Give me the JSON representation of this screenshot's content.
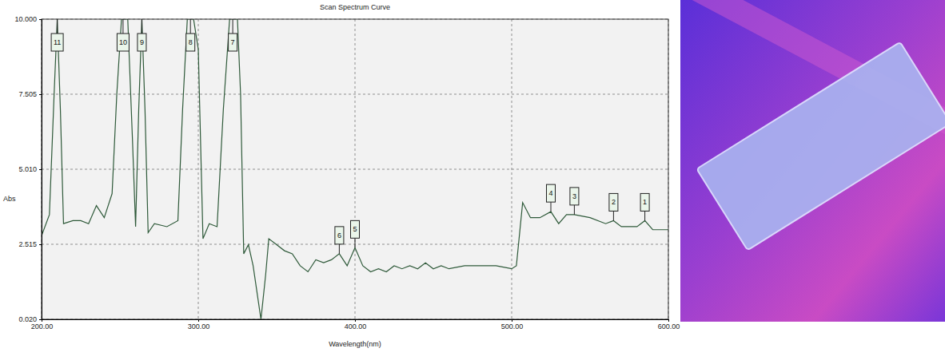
{
  "chart_data": {
    "type": "line",
    "title": "Scan Spectrum Curve",
    "x_label": "Wavelength(nm)",
    "y_label": "Abs",
    "color": "#2f5a3a",
    "grid": true,
    "xlim": [
      200,
      600
    ],
    "xticks": [
      {
        "value": 200,
        "label": "200.00"
      },
      {
        "value": 300,
        "label": "300.00"
      },
      {
        "value": 400,
        "label": "400.00"
      },
      {
        "value": 500,
        "label": "500.00"
      },
      {
        "value": 600,
        "label": "600.00"
      }
    ],
    "ylim": [
      0.02,
      10
    ],
    "yticks": [
      {
        "value": 0.02,
        "label": "0.020"
      },
      {
        "value": 2.515,
        "label": "2.515"
      },
      {
        "value": 5.01,
        "label": "5.010"
      },
      {
        "value": 7.505,
        "label": "7.505"
      },
      {
        "value": 10,
        "label": "10.000"
      }
    ],
    "x": [
      200,
      205,
      208,
      210,
      212,
      214,
      220,
      225,
      230,
      235,
      240,
      245,
      248,
      251,
      255,
      258,
      260,
      262,
      264,
      266,
      268,
      272,
      280,
      287,
      290,
      293,
      297,
      300,
      303,
      307,
      312,
      316,
      320,
      325,
      327,
      329,
      332,
      335,
      340,
      343,
      345,
      350,
      355,
      360,
      365,
      370,
      375,
      380,
      385,
      390,
      395,
      400,
      405,
      410,
      415,
      420,
      425,
      430,
      435,
      440,
      445,
      450,
      455,
      460,
      470,
      480,
      490,
      500,
      503,
      507,
      512,
      518,
      525,
      530,
      535,
      540,
      550,
      560,
      565,
      570,
      580,
      585,
      590,
      595,
      600
    ],
    "values": [
      2.8,
      3.5,
      7.5,
      10,
      7,
      3.2,
      3.3,
      3.3,
      3.2,
      3.8,
      3.4,
      4.2,
      7.5,
      10,
      10,
      6,
      3.1,
      7,
      10,
      7,
      2.9,
      3.2,
      3.1,
      3.3,
      7,
      10,
      10,
      9,
      2.7,
      3.2,
      3.1,
      7,
      10,
      10,
      7.5,
      2.2,
      2.5,
      1.8,
      0.02,
      1.5,
      2.7,
      2.5,
      2.3,
      2.2,
      1.8,
      1.6,
      2.0,
      1.9,
      2.0,
      2.2,
      1.8,
      2.4,
      1.8,
      1.6,
      1.7,
      1.6,
      1.8,
      1.7,
      1.8,
      1.7,
      1.9,
      1.7,
      1.8,
      1.7,
      1.8,
      1.8,
      1.8,
      1.7,
      1.8,
      3.9,
      3.4,
      3.4,
      3.6,
      3.2,
      3.5,
      3.5,
      3.4,
      3.2,
      3.3,
      3.1,
      3.1,
      3.3,
      3.0,
      3.0,
      3.0
    ],
    "annotations": [
      {
        "text": "1",
        "x": 585,
        "y": 3.3
      },
      {
        "text": "2",
        "x": 565,
        "y": 3.3
      },
      {
        "text": "3",
        "x": 540,
        "y": 3.5
      },
      {
        "text": "4",
        "x": 525,
        "y": 3.6
      },
      {
        "text": "5",
        "x": 400,
        "y": 2.4
      },
      {
        "text": "6",
        "x": 390,
        "y": 2.2
      },
      {
        "text": "7",
        "x": 322,
        "y": 10
      },
      {
        "text": "8",
        "x": 295,
        "y": 10
      },
      {
        "text": "9",
        "x": 264,
        "y": 10
      },
      {
        "text": "10",
        "x": 252,
        "y": 10
      },
      {
        "text": "11",
        "x": 210,
        "y": 10
      }
    ]
  }
}
